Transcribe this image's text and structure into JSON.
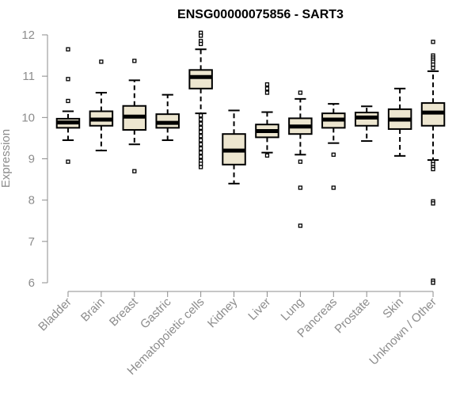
{
  "chart_data": {
    "type": "boxplot",
    "title": "ENSG00000075856 - SART3",
    "ylabel": "Expression",
    "xlabel": "",
    "ylim": [
      6,
      12
    ],
    "yticks": [
      6,
      7,
      8,
      9,
      10,
      11,
      12
    ],
    "grid": false,
    "legend": "none",
    "box_color": "#ede6d0",
    "categories": [
      "Bladder",
      "Brain",
      "Breast",
      "Gastric",
      "Hematopoietic cells",
      "Kidney",
      "Liver",
      "Lung",
      "Pancreas",
      "Prostate",
      "Skin",
      "Unknown / Other"
    ],
    "boxes": [
      {
        "category": "Bladder",
        "whisker_low": 9.45,
        "q1": 9.75,
        "median": 9.88,
        "q3": 9.97,
        "whisker_high": 10.15,
        "outliers": [
          11.65,
          10.93,
          10.4,
          8.93
        ]
      },
      {
        "category": "Brain",
        "whisker_low": 9.2,
        "q1": 9.8,
        "median": 9.95,
        "q3": 10.15,
        "whisker_high": 10.6,
        "outliers": [
          11.35
        ]
      },
      {
        "category": "Breast",
        "whisker_low": 9.35,
        "q1": 9.7,
        "median": 10.02,
        "q3": 10.28,
        "whisker_high": 10.9,
        "outliers": [
          11.37,
          8.7
        ]
      },
      {
        "category": "Gastric",
        "whisker_low": 9.45,
        "q1": 9.75,
        "median": 9.87,
        "q3": 10.08,
        "whisker_high": 10.55,
        "outliers": []
      },
      {
        "category": "Hematopoietic cells",
        "whisker_low": 10.1,
        "q1": 10.7,
        "median": 10.98,
        "q3": 11.15,
        "whisker_high": 11.65,
        "outliers": [
          12.05,
          11.98,
          11.85,
          11.78,
          10.05,
          9.95,
          9.85,
          9.75,
          9.65,
          9.55,
          9.45,
          9.35,
          9.25,
          9.15,
          9.05,
          8.95,
          8.88,
          8.8
        ]
      },
      {
        "category": "Kidney",
        "whisker_low": 8.4,
        "q1": 8.86,
        "median": 9.2,
        "q3": 9.6,
        "whisker_high": 10.17,
        "outliers": []
      },
      {
        "category": "Liver",
        "whisker_low": 9.15,
        "q1": 9.52,
        "median": 9.67,
        "q3": 9.83,
        "whisker_high": 10.13,
        "outliers": [
          10.8,
          10.7,
          10.6,
          9.08
        ]
      },
      {
        "category": "Lung",
        "whisker_low": 9.1,
        "q1": 9.6,
        "median": 9.78,
        "q3": 9.98,
        "whisker_high": 10.45,
        "outliers": [
          10.6,
          8.93,
          8.3,
          7.38
        ]
      },
      {
        "category": "Pancreas",
        "whisker_low": 9.38,
        "q1": 9.75,
        "median": 9.95,
        "q3": 10.1,
        "whisker_high": 10.33,
        "outliers": [
          9.1,
          8.3
        ]
      },
      {
        "category": "Prostate",
        "whisker_low": 9.43,
        "q1": 9.8,
        "median": 10.0,
        "q3": 10.12,
        "whisker_high": 10.27,
        "outliers": []
      },
      {
        "category": "Skin",
        "whisker_low": 9.07,
        "q1": 9.72,
        "median": 9.95,
        "q3": 10.2,
        "whisker_high": 10.7,
        "outliers": []
      },
      {
        "category": "Unknown / Other",
        "whisker_low": 8.97,
        "q1": 9.8,
        "median": 10.12,
        "q3": 10.35,
        "whisker_high": 11.12,
        "outliers": [
          11.83,
          11.5,
          11.45,
          11.4,
          11.35,
          11.28,
          11.2,
          8.93,
          8.87,
          8.8,
          8.75,
          7.97,
          7.92,
          6.05,
          6.0
        ]
      }
    ]
  }
}
